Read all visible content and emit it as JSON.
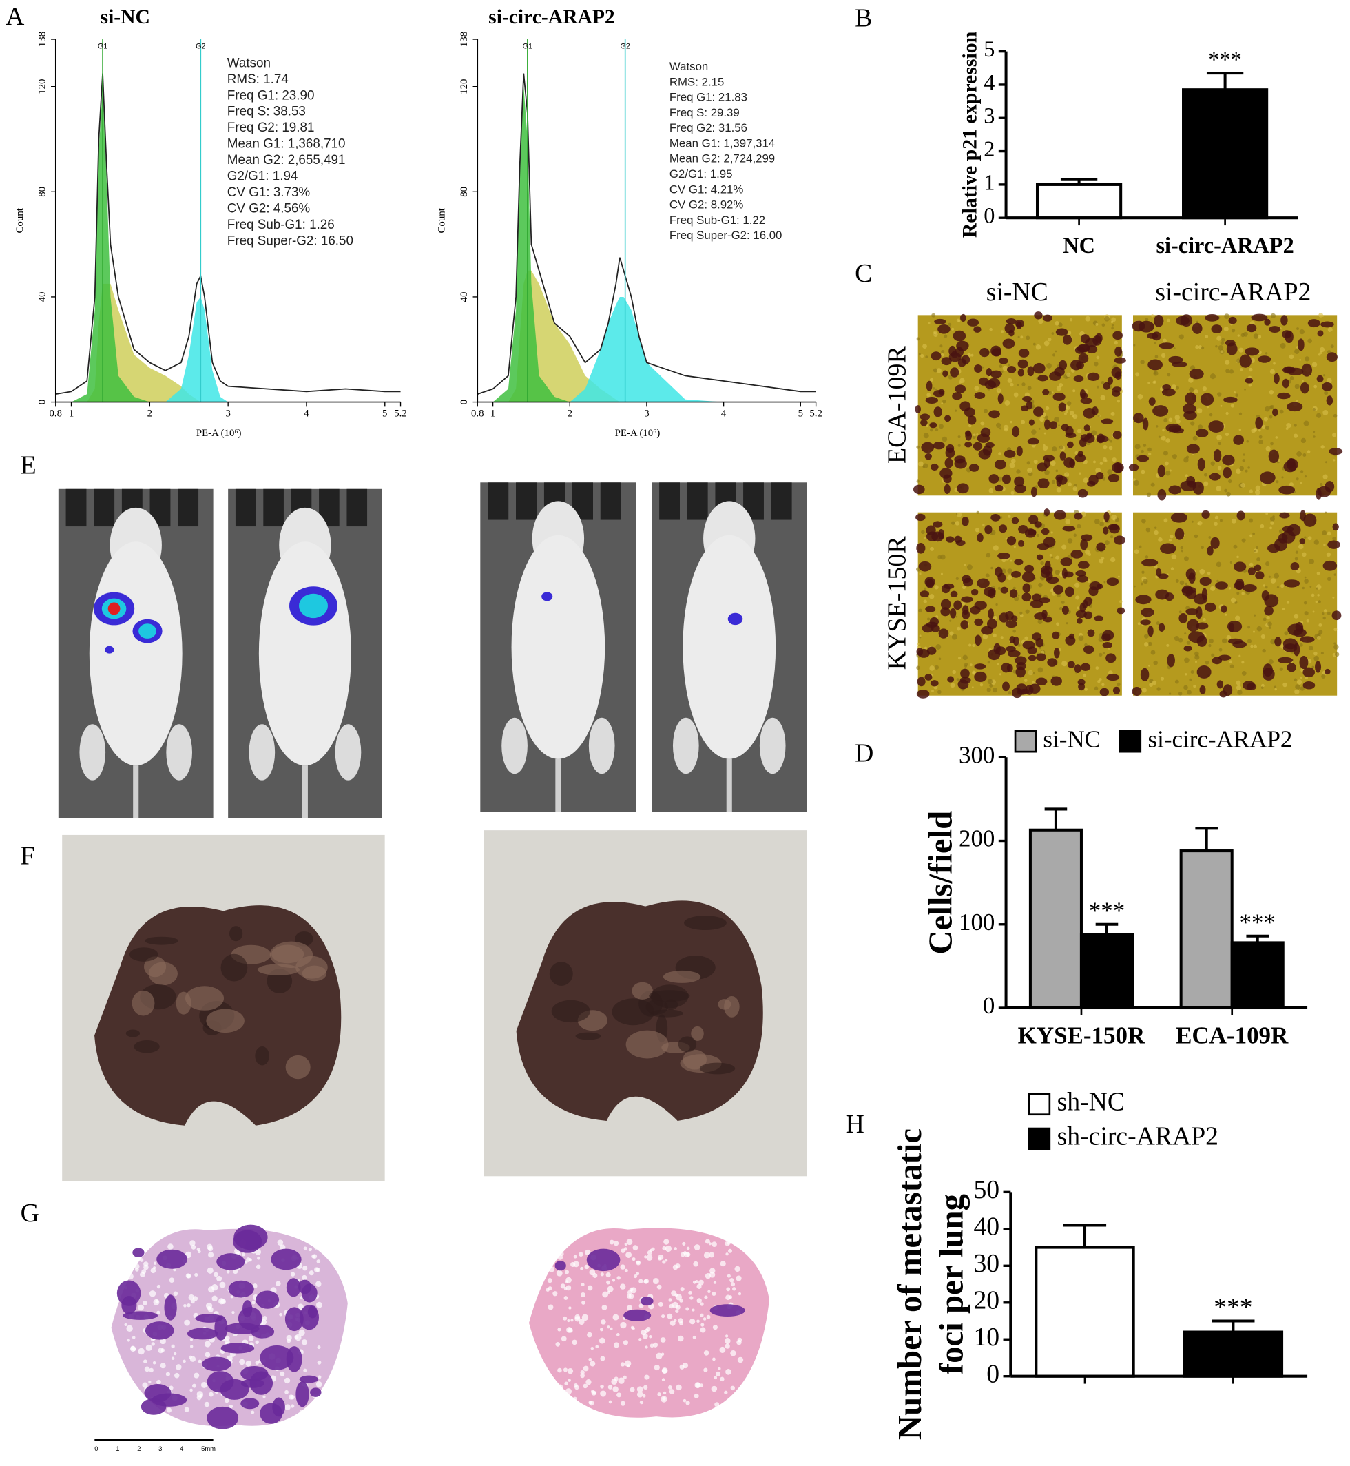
{
  "panel_labels": [
    "A",
    "B",
    "C",
    "D",
    "E",
    "F",
    "G",
    "H"
  ],
  "figure": {
    "c_columns": [
      "si-NC",
      "si-circ-ARAP2"
    ],
    "c_rows": [
      "ECA-109R",
      "KYSE-150R"
    ],
    "scale_labels": [
      "0",
      "1",
      "2",
      "3",
      "4",
      "5mm"
    ]
  },
  "chart_data": [
    {
      "type": "flow",
      "title": "si-NC",
      "xlabel": "PE-A (10⁶)",
      "ylabel": "Count",
      "xlim": [
        0.8,
        5.2
      ],
      "xticks": [
        0.8,
        1,
        2,
        3,
        4,
        5,
        5.2
      ],
      "ylim": [
        0,
        138
      ],
      "yticks": [
        0,
        40,
        80,
        120,
        138
      ],
      "markers": [
        {
          "value": 1.4,
          "label": "G1"
        },
        {
          "value": 2.65,
          "label": "G2"
        }
      ],
      "x": [
        0.8,
        1.0,
        1.2,
        1.3,
        1.35,
        1.4,
        1.45,
        1.5,
        1.6,
        1.8,
        2.0,
        2.2,
        2.4,
        2.5,
        2.6,
        2.65,
        2.7,
        2.8,
        2.9,
        3.0,
        3.5,
        4.0,
        4.5,
        5.0,
        5.2
      ],
      "series": [
        {
          "color": "#cfcf5a",
          "style": "area",
          "values": [
            0,
            0,
            0,
            5,
            30,
            45,
            45,
            45,
            35,
            18,
            13,
            10,
            6,
            3,
            1,
            0,
            0,
            0,
            0,
            0,
            0,
            0,
            0,
            0,
            0
          ]
        },
        {
          "color": "#3fe6e6",
          "style": "area",
          "values": [
            0,
            0,
            0,
            0,
            0,
            0,
            0,
            0,
            0,
            0,
            0,
            0,
            5,
            18,
            38,
            40,
            35,
            12,
            2,
            0,
            0,
            0,
            0,
            0,
            0
          ]
        },
        {
          "color": "#3fbf3f",
          "style": "area",
          "values": [
            0,
            0,
            3,
            35,
            95,
            120,
            85,
            40,
            10,
            2,
            0,
            0,
            0,
            0,
            0,
            0,
            0,
            0,
            0,
            0,
            0,
            0,
            0,
            0,
            0
          ]
        },
        {
          "color": "#222222",
          "style": "line",
          "values": [
            3,
            4,
            8,
            40,
            100,
            125,
            90,
            60,
            40,
            20,
            15,
            12,
            15,
            25,
            45,
            48,
            40,
            15,
            8,
            6,
            5,
            4,
            5,
            4,
            4
          ]
        }
      ],
      "stats": [
        "Watson",
        "RMS: 1.74",
        "Freq G1: 23.90",
        "Freq S: 38.53",
        "Freq G2: 19.81",
        "Mean G1: 1,368,710",
        "Mean G2: 2,655,491",
        "G2/G1: 1.94",
        "CV G1: 3.73%",
        "CV G2: 4.56%",
        "Freq Sub-G1: 1.26",
        "Freq Super-G2: 16.50"
      ]
    },
    {
      "type": "flow",
      "title": "si-circ-ARAP2",
      "xlabel": "PE-A (10⁶)",
      "ylabel": "Count",
      "xlim": [
        0.8,
        5.2
      ],
      "xticks": [
        0.8,
        1,
        2,
        3,
        4,
        5,
        5.2
      ],
      "ylim": [
        0,
        138
      ],
      "yticks": [
        0,
        40,
        80,
        120,
        138
      ],
      "markers": [
        {
          "value": 1.45,
          "label": "G1"
        },
        {
          "value": 2.72,
          "label": "G2"
        }
      ],
      "x": [
        0.8,
        1.0,
        1.2,
        1.3,
        1.35,
        1.4,
        1.45,
        1.5,
        1.6,
        1.8,
        2.0,
        2.2,
        2.4,
        2.5,
        2.6,
        2.65,
        2.7,
        2.8,
        2.9,
        3.0,
        3.5,
        4.0,
        4.5,
        5.0,
        5.2
      ],
      "series": [
        {
          "color": "#cfcf5a",
          "style": "area",
          "values": [
            0,
            0,
            0,
            5,
            25,
            45,
            50,
            50,
            45,
            30,
            22,
            10,
            5,
            3,
            1,
            0,
            0,
            0,
            0,
            0,
            0,
            0,
            0,
            0,
            0
          ]
        },
        {
          "color": "#3fe6e6",
          "style": "area",
          "values": [
            0,
            0,
            0,
            0,
            0,
            0,
            0,
            0,
            0,
            0,
            0,
            5,
            20,
            30,
            37,
            40,
            40,
            35,
            25,
            15,
            1,
            0,
            0,
            0,
            0
          ]
        },
        {
          "color": "#3fbf3f",
          "style": "area",
          "values": [
            0,
            0,
            5,
            35,
            90,
            120,
            100,
            45,
            10,
            2,
            0,
            0,
            0,
            0,
            0,
            0,
            0,
            0,
            0,
            0,
            0,
            0,
            0,
            0,
            0
          ]
        },
        {
          "color": "#222222",
          "style": "line",
          "values": [
            3,
            5,
            10,
            40,
            90,
            125,
            110,
            60,
            50,
            30,
            25,
            15,
            20,
            30,
            45,
            55,
            50,
            40,
            25,
            15,
            10,
            8,
            6,
            4,
            4
          ]
        }
      ],
      "stats": [
        "Watson",
        "RMS: 2.15",
        "Freq G1: 21.83",
        "Freq S: 29.39",
        "Freq G2: 31.56",
        "Mean G1: 1,397,314",
        "Mean G2: 2,724,299",
        "G2/G1: 1.95",
        "CV G1: 4.21%",
        "CV G2: 8.92%",
        "Freq Sub-G1: 1.22",
        "Freq Super-G2: 16.00"
      ]
    },
    {
      "type": "bar",
      "ylabel": "Relative p21 expression",
      "categories": [
        "NC",
        "si-circ-ARAP2"
      ],
      "values": [
        1.0,
        3.85
      ],
      "errors": [
        0.15,
        0.5
      ],
      "colors": [
        "#ffffff",
        "#000000"
      ],
      "annotations": [
        null,
        "***"
      ],
      "ylim": [
        0,
        5
      ],
      "yticks": [
        0,
        1,
        2,
        3,
        4,
        5
      ]
    },
    {
      "type": "bar",
      "ylabel": "Cells/field",
      "categories": [
        "KYSE-150R",
        "ECA-109R"
      ],
      "legend": "top",
      "series": [
        {
          "name": "si-NC",
          "color": "#a9a9a9",
          "values": [
            213,
            188
          ],
          "errors": [
            25,
            27
          ]
        },
        {
          "name": "si-circ-ARAP2",
          "color": "#000000",
          "values": [
            88,
            78
          ],
          "errors": [
            12,
            8
          ],
          "annotations": [
            "***",
            "***"
          ]
        }
      ],
      "ylim": [
        0,
        300
      ],
      "yticks": [
        0,
        100,
        200,
        300
      ]
    },
    {
      "type": "bar",
      "ylabel": [
        "Number of metastatic",
        "foci per lung"
      ],
      "legend": "top",
      "series": [
        {
          "name": "sh-NC",
          "color": "#ffffff",
          "values": [
            35
          ],
          "errors": [
            6
          ]
        },
        {
          "name": "sh-circ-ARAP2",
          "color": "#000000",
          "values": [
            12
          ],
          "errors": [
            3
          ],
          "annotations": [
            "***"
          ]
        }
      ],
      "ylim": [
        0,
        50
      ],
      "yticks": [
        0,
        10,
        20,
        30,
        40,
        50
      ]
    }
  ]
}
